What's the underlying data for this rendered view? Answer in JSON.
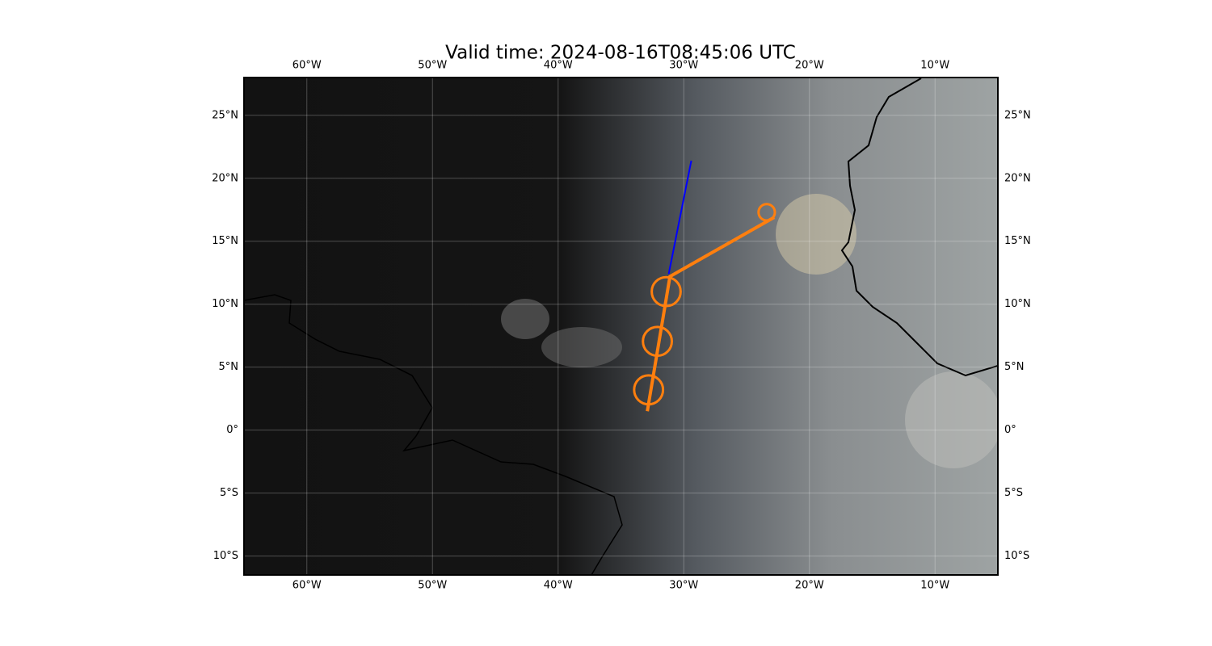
{
  "map": {
    "title": "Valid time: 2024-08-16T08:45:06 UTC",
    "xlim": [
      -65,
      -5
    ],
    "ylim": [
      -11.5,
      28
    ],
    "xticks": [
      {
        "value": -60,
        "label": "60°W"
      },
      {
        "value": -50,
        "label": "50°W"
      },
      {
        "value": -40,
        "label": "40°W"
      },
      {
        "value": -30,
        "label": "30°W"
      },
      {
        "value": -20,
        "label": "20°W"
      },
      {
        "value": -10,
        "label": "10°W"
      }
    ],
    "yticks": [
      {
        "value": 25,
        "label": "25°N"
      },
      {
        "value": 20,
        "label": "20°N"
      },
      {
        "value": 15,
        "label": "15°N"
      },
      {
        "value": 10,
        "label": "10°N"
      },
      {
        "value": 5,
        "label": "5°N"
      },
      {
        "value": 0,
        "label": "0°"
      },
      {
        "value": -5,
        "label": "5°S"
      },
      {
        "value": -10,
        "label": "10°S"
      }
    ],
    "grid": true,
    "tracks": [
      {
        "color": "#0000ff",
        "width": 2,
        "lon": [
          -29.4,
          -31.2
        ],
        "lat": [
          21.4,
          12.4
        ]
      },
      {
        "color": "#ff7f0e",
        "width": 4,
        "lon": [
          -32.9,
          -31.1,
          -22.8
        ],
        "lat": [
          1.5,
          12.2,
          16.9
        ]
      }
    ],
    "circles": {
      "color": "#ff7f0e",
      "lon": [
        -32.8,
        -32.1,
        -31.4,
        -23.4
      ],
      "lat": [
        3.2,
        7.05,
        11.0,
        17.3
      ],
      "size": [
        1.15,
        1.15,
        1.15,
        0.65
      ]
    }
  }
}
